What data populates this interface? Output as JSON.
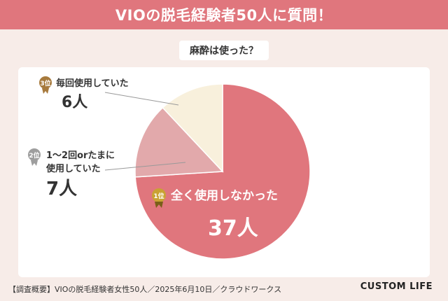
{
  "header": {
    "title": "VIOの脱毛経験者50人に質問！"
  },
  "chart_data": {
    "type": "pie",
    "title": "麻酔は使った？",
    "slices": [
      {
        "rank_label": "1位",
        "label": "全く使用しなかった",
        "value": 37,
        "value_label": "37人",
        "color": "#e0767d"
      },
      {
        "rank_label": "2位",
        "label": "1〜2回orたまに使用していた",
        "label_line1": "1〜2回orたまに",
        "label_line2": "使用していた",
        "value": 7,
        "value_label": "7人",
        "color": "#e2a9ab"
      },
      {
        "rank_label": "3位",
        "label": "毎回使用していた",
        "value": 6,
        "value_label": "6人",
        "color": "#f8f0dc"
      }
    ],
    "total": 50
  },
  "footer": {
    "survey_note": "【調査概要】VIOの脱毛経験者女性50人／2025年6月10日／クラウドワークス",
    "brand": "CUSTOM LIFE"
  },
  "colors": {
    "banner": "#e0767d",
    "background": "#f7ece8",
    "gold": "#c9a233",
    "silver": "#9e9e9e",
    "bronze": "#a77a3d"
  }
}
